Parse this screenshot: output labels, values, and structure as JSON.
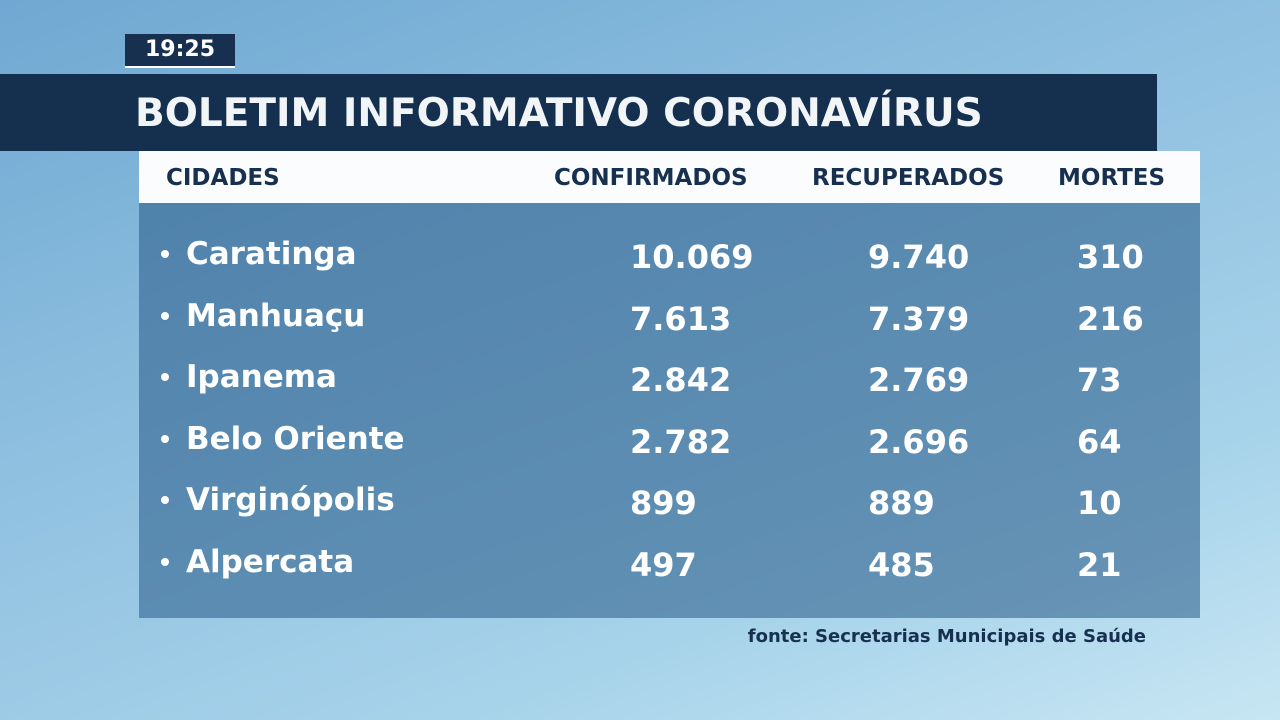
{
  "time": "19:25",
  "title": "BOLETIM INFORMATIVO CORONAVÍRUS",
  "table": {
    "headers": [
      "CIDADES",
      "CONFIRMADOS",
      "RECUPERADOS",
      "MORTES"
    ],
    "rows": [
      [
        "Caratinga",
        "10.069",
        "9.740",
        "310"
      ],
      [
        "Manhuaçu",
        "7.613",
        "7.379",
        "216"
      ],
      [
        "Ipanema",
        "2.842",
        "2.769",
        "73"
      ],
      [
        "Belo Oriente",
        "2.782",
        "2.696",
        "64"
      ],
      [
        "Virginópolis",
        "899",
        "889",
        "10"
      ],
      [
        "Alpercata",
        "497",
        "485",
        "21"
      ]
    ]
  },
  "source": "fonte: Secretarias Municipais de Saúde"
}
